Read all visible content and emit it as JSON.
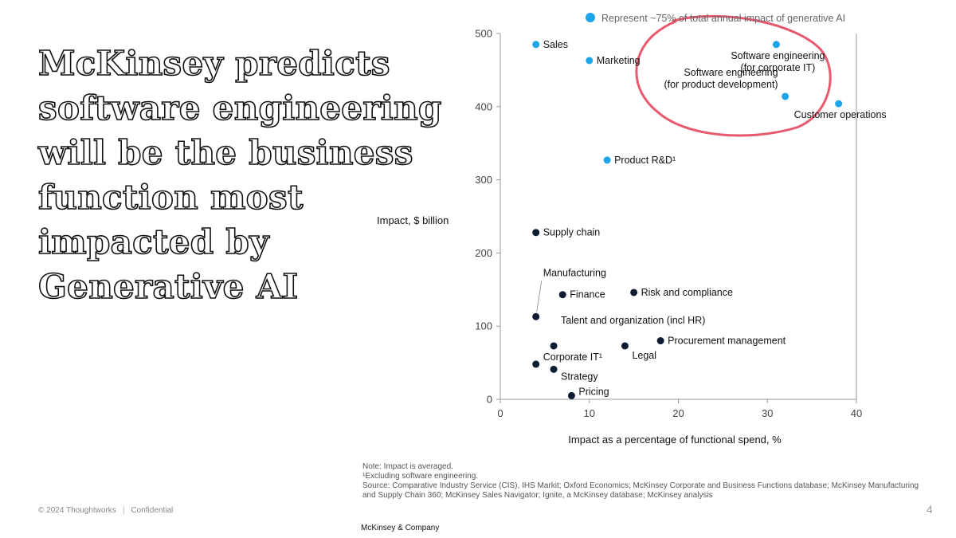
{
  "slide": {
    "headline": "McKinsey predicts software engineering will be the business function most impacted by Generative AI",
    "notes": {
      "note": "Note: Impact is averaged.",
      "footnote": "¹Excluding software engineering.",
      "source_line1": "Source: Comparative Industry Service (CIS), IHS Markit; Oxford Economics; McKinsey Corporate and Business Functions database; McKinsey Manufacturing",
      "source_line2": "and Supply Chain 360; McKinsey Sales Navigator; Ignite, a McKinsey database; McKinsey analysis"
    },
    "footer": {
      "copyright": "© 2024 Thoughtworks",
      "confidential": "Confidential",
      "page_number": "4",
      "brand": "McKinsey & Company"
    }
  },
  "colors": {
    "highlight": "#1EA5E9",
    "default": "#0B1C33",
    "annotation": "#E8596E",
    "axis": "#9a9a9a"
  },
  "chart_data": {
    "type": "scatter",
    "xlabel": "Impact as a percentage of functional spend, %",
    "ylabel": "Impact, $ billion",
    "xlim": [
      0,
      40
    ],
    "ylim": [
      0,
      500
    ],
    "xticks": [
      0,
      10,
      20,
      30,
      40
    ],
    "yticks": [
      0,
      100,
      200,
      300,
      400,
      500
    ],
    "legend": {
      "text": "Represent ~75% of total annual impact of generative AI",
      "placement": "top"
    },
    "annotation": "hand-drawn circle around the software engineering points",
    "points": [
      {
        "label": "Sales",
        "x": 4,
        "y": 485,
        "highlight": true
      },
      {
        "label": "Marketing",
        "x": 10,
        "y": 463,
        "highlight": true
      },
      {
        "label": "Software engineering\n(for corporate IT)",
        "x": 31,
        "y": 485,
        "highlight": true
      },
      {
        "label": "Software engineering\n(for product development)",
        "x": 32,
        "y": 414,
        "highlight": true
      },
      {
        "label": "Customer operations",
        "x": 38,
        "y": 404,
        "highlight": true
      },
      {
        "label": "Product R&D¹",
        "x": 12,
        "y": 327,
        "highlight": true
      },
      {
        "label": "Supply chain",
        "x": 4,
        "y": 228,
        "highlight": false
      },
      {
        "label": "Manufacturing",
        "x": 4,
        "y": 113,
        "highlight": false
      },
      {
        "label": "Finance",
        "x": 7,
        "y": 143,
        "highlight": false
      },
      {
        "label": "Risk and compliance",
        "x": 15,
        "y": 146,
        "highlight": false
      },
      {
        "label": "Talent and organization (incl HR)",
        "x": 6,
        "y": 73,
        "highlight": false
      },
      {
        "label": "Procurement management",
        "x": 18,
        "y": 80,
        "highlight": false
      },
      {
        "label": "Legal",
        "x": 14,
        "y": 73,
        "highlight": false
      },
      {
        "label": "Corporate IT¹",
        "x": 4,
        "y": 48,
        "highlight": false
      },
      {
        "label": "Strategy",
        "x": 6,
        "y": 41,
        "highlight": false
      },
      {
        "label": "Pricing",
        "x": 8,
        "y": 5,
        "highlight": false
      }
    ]
  }
}
